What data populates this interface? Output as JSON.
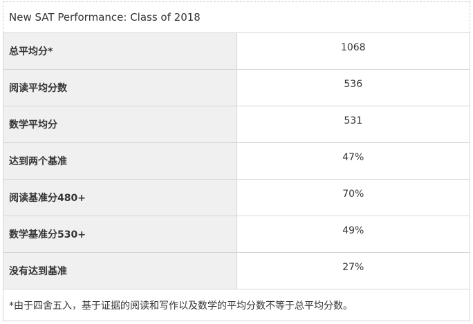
{
  "table": {
    "title": "New SAT Performance: Class of 2018",
    "rows": [
      {
        "label": "总平均分*",
        "value": "1068"
      },
      {
        "label": "阅读平均分数",
        "value": "536"
      },
      {
        "label": "数学平均分",
        "value": "531"
      },
      {
        "label": "达到两个基准",
        "value": "47%"
      },
      {
        "label": "阅读基准分480+",
        "value": "70%"
      },
      {
        "label": "数学基准分530+",
        "value": "49%"
      },
      {
        "label": "没有达到基准",
        "value": "27%"
      }
    ],
    "footnote": "*由于四舍五入，基于证据的阅读和写作以及数学的平均分数不等于总平均分数。"
  }
}
